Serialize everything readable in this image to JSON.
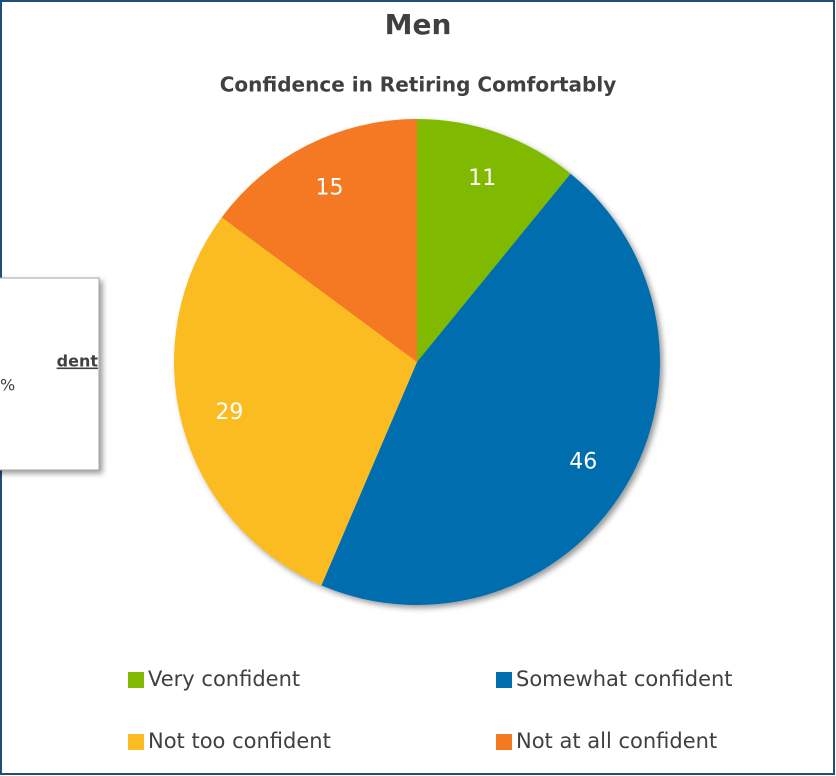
{
  "chart_data": {
    "type": "pie",
    "title": "Men",
    "subtitle": "Confidence in Retiring Comfortably",
    "categories": [
      "Very confident",
      "Somewhat confident",
      "Not too confident",
      "Not at all confident"
    ],
    "values": [
      11,
      46,
      29,
      15
    ],
    "colors": [
      "#7fba00",
      "#006eae",
      "#fbbc24",
      "#f47920"
    ],
    "legend": "bottom",
    "callout": {
      "title": "dent",
      "text": "%"
    }
  }
}
